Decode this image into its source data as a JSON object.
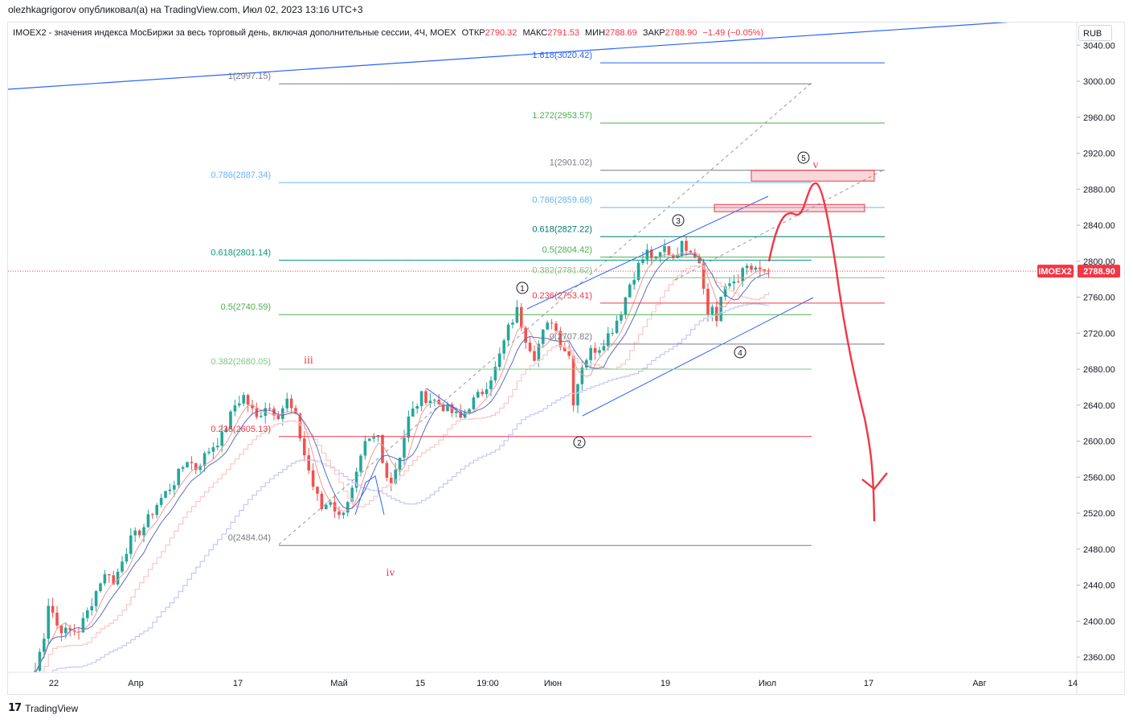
{
  "header": {
    "publisher": "olezhkagrigorov опубликовал(а) на TradingView.com, Июл 02, 2023 13:16 UTC+3"
  },
  "legend": {
    "symbol": "IMOEX2 - значения индекса МосБиржи за весь торговый день, включая дополнительные сессии, 4Ч, MOEX",
    "open_label": "ОТКР",
    "open": "2790.32",
    "high_label": "МАКС",
    "high": "2791.53",
    "low_label": "МИН",
    "low": "2788.69",
    "close_label": "ЗАКР",
    "close": "2788.90",
    "change": "−1.49 (−0.05%)"
  },
  "currency": "RUB",
  "price_tag": {
    "symbol": "IMOEX2",
    "price": "2788.90"
  },
  "branding": {
    "logo_text": "TradingView",
    "logo_icon": "tv-logo-icon"
  },
  "colors": {
    "up": "#26a69a",
    "down": "#ef5350",
    "blue": "#2962ff",
    "red_path": "#f23645",
    "fib_dark": "#787b86",
    "fib_teal": "#089981",
    "fib_green": "#4caf50",
    "fib_blue": "#64b5f6",
    "fib_red": "#f23645",
    "fib_darkteal": "#00796b"
  },
  "chart_data": {
    "type": "candlestick",
    "timeframe": "4Ч",
    "y_axis": {
      "range": [
        2340,
        3050
      ],
      "ticks": [
        3040.0,
        3000.0,
        2960.0,
        2920.0,
        2880.0,
        2840.0,
        2800.0,
        2760.0,
        2720.0,
        2680.0,
        2640.0,
        2600.0,
        2560.0,
        2520.0,
        2480.0,
        2440.0,
        2400.0,
        2360.0
      ]
    },
    "x_axis": {
      "ticks": [
        "22",
        "Апр",
        "17",
        "Май",
        "15",
        "19:00",
        "Июн",
        "19",
        "Июл",
        "17",
        "Авг",
        "14"
      ]
    },
    "close_anchors": [
      [
        0,
        2345
      ],
      [
        2,
        2385
      ],
      [
        3,
        2420
      ],
      [
        4,
        2410
      ],
      [
        5,
        2395
      ],
      [
        7,
        2388
      ],
      [
        10,
        2390
      ],
      [
        12,
        2410
      ],
      [
        15,
        2445
      ],
      [
        17,
        2455
      ],
      [
        18,
        2440
      ],
      [
        20,
        2470
      ],
      [
        22,
        2490
      ],
      [
        25,
        2505
      ],
      [
        28,
        2530
      ],
      [
        32,
        2555
      ],
      [
        35,
        2580
      ],
      [
        37,
        2570
      ],
      [
        40,
        2590
      ],
      [
        43,
        2605
      ],
      [
        46,
        2640
      ],
      [
        48,
        2650
      ],
      [
        51,
        2625
      ],
      [
        53,
        2640
      ],
      [
        56,
        2630
      ],
      [
        58,
        2645
      ],
      [
        60,
        2625
      ],
      [
        62,
        2585
      ],
      [
        64,
        2550
      ],
      [
        66,
        2525
      ],
      [
        68,
        2535
      ],
      [
        70,
        2515
      ],
      [
        71,
        2525
      ],
      [
        73,
        2545
      ],
      [
        76,
        2595
      ],
      [
        79,
        2605
      ],
      [
        80,
        2575
      ],
      [
        82,
        2555
      ],
      [
        84,
        2585
      ],
      [
        86,
        2625
      ],
      [
        89,
        2650
      ],
      [
        92,
        2645
      ],
      [
        95,
        2635
      ],
      [
        98,
        2625
      ],
      [
        100,
        2640
      ],
      [
        103,
        2655
      ],
      [
        106,
        2680
      ],
      [
        109,
        2725
      ],
      [
        111,
        2745
      ],
      [
        113,
        2715
      ],
      [
        115,
        2695
      ],
      [
        117,
        2720
      ],
      [
        119,
        2735
      ],
      [
        121,
        2710
      ],
      [
        123,
        2695
      ],
      [
        124,
        2645
      ],
      [
        126,
        2685
      ],
      [
        128,
        2700
      ],
      [
        130,
        2705
      ],
      [
        133,
        2725
      ],
      [
        135,
        2745
      ],
      [
        137,
        2775
      ],
      [
        139,
        2795
      ],
      [
        141,
        2810
      ],
      [
        143,
        2800
      ],
      [
        145,
        2815
      ],
      [
        147,
        2805
      ],
      [
        149,
        2818
      ],
      [
        151,
        2815
      ],
      [
        153,
        2800
      ],
      [
        154,
        2775
      ],
      [
        155,
        2740
      ],
      [
        156,
        2750
      ],
      [
        157,
        2735
      ],
      [
        158,
        2760
      ],
      [
        160,
        2775
      ],
      [
        162,
        2782
      ],
      [
        164,
        2793
      ],
      [
        166,
        2788
      ],
      [
        168,
        2790
      ],
      [
        169,
        2788.9
      ]
    ],
    "fib_levels_left": [
      {
        "label": "1(2997.15)",
        "value": 2997.15,
        "color": "#787b86"
      },
      {
        "label": "0.786(2887.34)",
        "value": 2887.34,
        "color": "#64b5f6"
      },
      {
        "label": "0.618(2801.14)",
        "value": 2801.14,
        "color": "#089981"
      },
      {
        "label": "0.5(2740.59)",
        "value": 2740.59,
        "color": "#4caf50"
      },
      {
        "label": "0.382(2680.05)",
        "value": 2680.05,
        "color": "#81c784"
      },
      {
        "label": "0.236(2605.13)",
        "value": 2605.13,
        "color": "#f23645"
      },
      {
        "label": "0(2484.04)",
        "value": 2484.04,
        "color": "#787b86"
      }
    ],
    "fib_levels_right": [
      {
        "label": "1.618(3020.42)",
        "value": 3020.42,
        "color": "#2962ff"
      },
      {
        "label": "1.272(2953.57)",
        "value": 2953.57,
        "color": "#4caf50"
      },
      {
        "label": "1(2901.02)",
        "value": 2901.02,
        "color": "#787b86"
      },
      {
        "label": "0.786(2859.68)",
        "value": 2859.68,
        "color": "#64b5f6"
      },
      {
        "label": "0.618(2827.22)",
        "value": 2827.22,
        "color": "#00796b"
      },
      {
        "label": "0.5(2804.42)",
        "value": 2804.42,
        "color": "#4caf50"
      },
      {
        "label": "0.382(2781.62)",
        "value": 2781.62,
        "color": "#81c784"
      },
      {
        "label": "0.236(2753.41)",
        "value": 2753.41,
        "color": "#f23645"
      },
      {
        "label": "0(2707.82)",
        "value": 2707.82,
        "color": "#787b86"
      }
    ],
    "wave_labels": [
      {
        "text": "①",
        "color": "#131722"
      },
      {
        "text": "②",
        "color": "#131722"
      },
      {
        "text": "③",
        "color": "#131722"
      },
      {
        "text": "④",
        "color": "#131722"
      },
      {
        "text": "⑤",
        "color": "#131722"
      },
      {
        "text": "iii",
        "color": "#f23645"
      },
      {
        "text": "iv",
        "color": "#f23645"
      },
      {
        "text": "v",
        "color": "#f23645"
      }
    ],
    "zones": [
      {
        "from": 2889,
        "to": 2901
      },
      {
        "from": 2855,
        "to": 2863
      }
    ],
    "projection": {
      "peak": 2888,
      "target": 2552
    }
  }
}
